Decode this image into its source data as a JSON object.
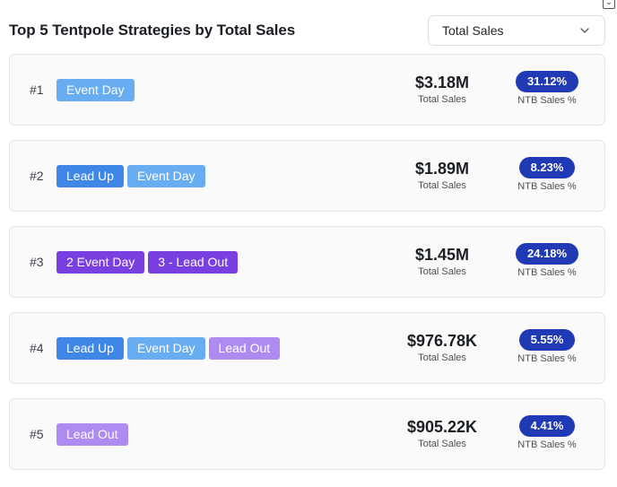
{
  "header": {
    "title": "Top 5 Tentpole Strategies by Total Sales",
    "dropdown": {
      "selected": "Total Sales",
      "icon": "chevron-down-icon"
    }
  },
  "labels": {
    "total_sales": "Total Sales",
    "ntb_sales": "NTB Sales %"
  },
  "colors": {
    "lead_up": "#3f87e7",
    "event_day": "#68acf1",
    "lead_out": "#ae8bf0",
    "purple_tag": "#7a3fe0",
    "ntb_pill": "#1f3ab4"
  },
  "items": [
    {
      "rank": "#1",
      "tags": [
        {
          "label": "Event Day",
          "kind": "event-day"
        }
      ],
      "total_sales": "$3.18M",
      "ntb": "31.12%"
    },
    {
      "rank": "#2",
      "tags": [
        {
          "label": "Lead Up",
          "kind": "lead-up"
        },
        {
          "label": "Event Day",
          "kind": "event-day"
        }
      ],
      "total_sales": "$1.89M",
      "ntb": "8.23%"
    },
    {
      "rank": "#3",
      "tags": [
        {
          "label": "2 Event Day",
          "kind": "purple"
        },
        {
          "label": "3 - Lead Out",
          "kind": "purple"
        }
      ],
      "total_sales": "$1.45M",
      "ntb": "24.18%"
    },
    {
      "rank": "#4",
      "tags": [
        {
          "label": "Lead Up",
          "kind": "lead-up"
        },
        {
          "label": "Event Day",
          "kind": "event-day"
        },
        {
          "label": "Lead Out",
          "kind": "lead-out"
        }
      ],
      "total_sales": "$976.78K",
      "ntb": "5.55%"
    },
    {
      "rank": "#5",
      "tags": [
        {
          "label": "Lead Out",
          "kind": "lead-out"
        }
      ],
      "total_sales": "$905.22K",
      "ntb": "4.41%"
    }
  ]
}
